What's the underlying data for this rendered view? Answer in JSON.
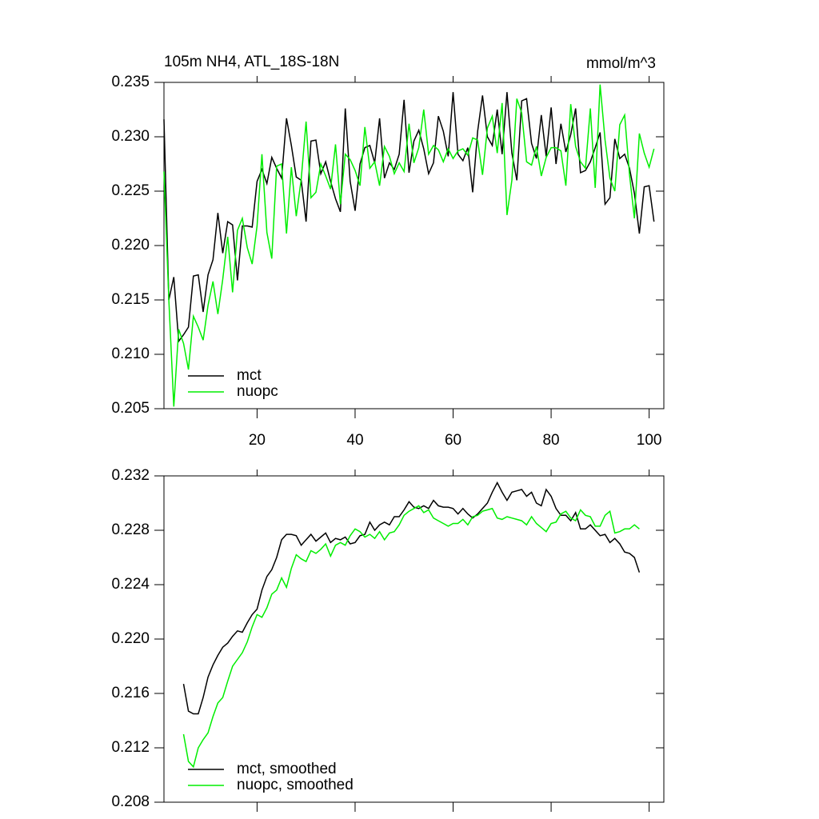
{
  "chart_data": [
    {
      "type": "line",
      "title": "105m NH4, ATL_18S-18N",
      "units": "mmol/m^3",
      "x": [
        1,
        2,
        3,
        4,
        5,
        6,
        7,
        8,
        9,
        10,
        11,
        12,
        13,
        14,
        15,
        16,
        17,
        18,
        19,
        20,
        21,
        22,
        23,
        24,
        25,
        26,
        27,
        28,
        29,
        30,
        31,
        32,
        33,
        34,
        35,
        36,
        37,
        38,
        39,
        40,
        41,
        42,
        43,
        44,
        45,
        46,
        47,
        48,
        49,
        50,
        51,
        52,
        53,
        54,
        55,
        56,
        57,
        58,
        59,
        60,
        61,
        62,
        63,
        64,
        65,
        66,
        67,
        68,
        69,
        70,
        71,
        72,
        73,
        74,
        75,
        76,
        77,
        78,
        79,
        80,
        81,
        82,
        83,
        84,
        85,
        86,
        87,
        88,
        89,
        90,
        91,
        92,
        93,
        94,
        95,
        96,
        97,
        98,
        99,
        100,
        101
      ],
      "series": [
        {
          "name": "mct",
          "color": "#000000",
          "values": [
            0.2316,
            0.215,
            0.2171,
            0.2112,
            0.2118,
            0.2125,
            0.2172,
            0.2173,
            0.2139,
            0.2173,
            0.2187,
            0.223,
            0.2193,
            0.2222,
            0.2219,
            0.2168,
            0.2218,
            0.2218,
            0.2217,
            0.2259,
            0.227,
            0.2257,
            0.2281,
            0.2271,
            0.2262,
            0.2317,
            0.2292,
            0.2263,
            0.226,
            0.2222,
            0.2296,
            0.2297,
            0.2266,
            0.2277,
            0.2259,
            0.2243,
            0.2231,
            0.2326,
            0.2259,
            0.2232,
            0.2275,
            0.229,
            0.2292,
            0.2276,
            0.2317,
            0.2262,
            0.2276,
            0.227,
            0.2284,
            0.2334,
            0.2267,
            0.2296,
            0.2306,
            0.2289,
            0.2266,
            0.2276,
            0.2319,
            0.2305,
            0.2282,
            0.2341,
            0.2284,
            0.2278,
            0.229,
            0.2249,
            0.2305,
            0.2338,
            0.23,
            0.2292,
            0.2325,
            0.2284,
            0.2341,
            0.2285,
            0.226,
            0.2333,
            0.2335,
            0.2294,
            0.228,
            0.232,
            0.2282,
            0.2327,
            0.2275,
            0.2312,
            0.2286,
            0.2302,
            0.2326,
            0.2267,
            0.2269,
            0.2277,
            0.229,
            0.2304,
            0.2238,
            0.2244,
            0.2298,
            0.228,
            0.2284,
            0.2271,
            0.2248,
            0.2211,
            0.2254,
            0.2255,
            0.2222
          ]
        },
        {
          "name": "nuopc",
          "color": "#00ee00",
          "values": [
            0.2268,
            0.215,
            0.2052,
            0.2123,
            0.211,
            0.2086,
            0.2135,
            0.2125,
            0.2113,
            0.2145,
            0.2167,
            0.2137,
            0.2169,
            0.2208,
            0.2157,
            0.2214,
            0.2225,
            0.2198,
            0.2183,
            0.2218,
            0.2284,
            0.2212,
            0.2188,
            0.2273,
            0.2275,
            0.2211,
            0.2272,
            0.2227,
            0.2261,
            0.2314,
            0.2244,
            0.2249,
            0.2275,
            0.2264,
            0.2252,
            0.2293,
            0.2238,
            0.2284,
            0.2279,
            0.2269,
            0.2255,
            0.2309,
            0.2271,
            0.2277,
            0.2255,
            0.2291,
            0.2282,
            0.2266,
            0.2276,
            0.2268,
            0.2312,
            0.2276,
            0.229,
            0.2325,
            0.2284,
            0.2292,
            0.2288,
            0.2277,
            0.2289,
            0.228,
            0.2287,
            0.2289,
            0.2283,
            0.2299,
            0.2297,
            0.2265,
            0.2308,
            0.2319,
            0.2285,
            0.2331,
            0.2228,
            0.226,
            0.2335,
            0.2322,
            0.2277,
            0.2274,
            0.2291,
            0.2264,
            0.2281,
            0.229,
            0.229,
            0.2287,
            0.2255,
            0.233,
            0.2291,
            0.2277,
            0.2271,
            0.2326,
            0.2253,
            0.2348,
            0.2297,
            0.2262,
            0.225,
            0.2311,
            0.232,
            0.2265,
            0.2225,
            0.2303,
            0.2285,
            0.2272,
            0.2289
          ]
        }
      ],
      "xlim": [
        1,
        103
      ],
      "xticks": [
        20,
        40,
        60,
        80,
        100
      ],
      "xtick_labels": true,
      "ylim": [
        0.205,
        0.235
      ],
      "yticks": [
        0.205,
        {
          "value": 0.21,
          "label": "0.210"
        },
        0.215,
        {
          "value": 0.22,
          "label": "0.220"
        },
        0.225,
        {
          "value": 0.23,
          "label": "0.230"
        },
        0.235
      ]
    },
    {
      "type": "line",
      "x": [
        5,
        6,
        7,
        8,
        9,
        10,
        11,
        12,
        13,
        14,
        15,
        16,
        17,
        18,
        19,
        20,
        21,
        22,
        23,
        24,
        25,
        26,
        27,
        28,
        29,
        30,
        31,
        32,
        33,
        34,
        35,
        36,
        37,
        38,
        39,
        40,
        41,
        42,
        43,
        44,
        45,
        46,
        47,
        48,
        49,
        50,
        51,
        52,
        53,
        54,
        55,
        56,
        57,
        58,
        59,
        60,
        61,
        62,
        63,
        64,
        65,
        66,
        67,
        68,
        69,
        70,
        71,
        72,
        73,
        74,
        75,
        76,
        77,
        78,
        79,
        80,
        81,
        82,
        83,
        84,
        85,
        86,
        87,
        88,
        89,
        90,
        91,
        92,
        93,
        94,
        95,
        96,
        97,
        98
      ],
      "series": [
        {
          "name": "mct, smoothed",
          "color": "#000000",
          "values": [
            0.2167,
            0.2147,
            0.2145,
            0.2145,
            0.2157,
            0.2172,
            0.2181,
            0.2188,
            0.2194,
            0.2197,
            0.2202,
            0.2206,
            0.2205,
            0.2212,
            0.2218,
            0.2222,
            0.2236,
            0.2246,
            0.2251,
            0.226,
            0.2273,
            0.2277,
            0.2277,
            0.2276,
            0.2269,
            0.2273,
            0.2277,
            0.2272,
            0.2275,
            0.2278,
            0.2271,
            0.2274,
            0.2273,
            0.2275,
            0.227,
            0.2271,
            0.2276,
            0.2277,
            0.2286,
            0.228,
            0.2284,
            0.2286,
            0.2284,
            0.229,
            0.229,
            0.2295,
            0.2301,
            0.2297,
            0.2296,
            0.2298,
            0.2296,
            0.2302,
            0.2298,
            0.2297,
            0.2297,
            0.2296,
            0.2292,
            0.2296,
            0.2292,
            0.2289,
            0.2292,
            0.2296,
            0.23,
            0.2308,
            0.2315,
            0.2308,
            0.2302,
            0.2308,
            0.2309,
            0.231,
            0.2305,
            0.2308,
            0.23,
            0.2298,
            0.231,
            0.2305,
            0.2296,
            0.2291,
            0.2291,
            0.2287,
            0.2293,
            0.2281,
            0.2281,
            0.2284,
            0.228,
            0.2276,
            0.2277,
            0.2271,
            0.2274,
            0.227,
            0.2264,
            0.2263,
            0.226,
            0.2249
          ]
        },
        {
          "name": "nuopc, smoothed",
          "color": "#00ee00",
          "values": [
            0.213,
            0.211,
            0.2106,
            0.212,
            0.2126,
            0.2131,
            0.2143,
            0.2153,
            0.2157,
            0.2169,
            0.218,
            0.2185,
            0.219,
            0.2198,
            0.2209,
            0.2218,
            0.2216,
            0.2223,
            0.2233,
            0.2236,
            0.2245,
            0.2238,
            0.2252,
            0.2262,
            0.2259,
            0.2257,
            0.2265,
            0.2263,
            0.2266,
            0.227,
            0.2261,
            0.2269,
            0.2271,
            0.2269,
            0.2276,
            0.2281,
            0.2279,
            0.2275,
            0.2277,
            0.2274,
            0.2279,
            0.2273,
            0.2278,
            0.2279,
            0.2284,
            0.2291,
            0.2294,
            0.2296,
            0.2298,
            0.2293,
            0.2295,
            0.2289,
            0.2287,
            0.2285,
            0.2283,
            0.2285,
            0.2285,
            0.2288,
            0.2284,
            0.229,
            0.2291,
            0.2294,
            0.2295,
            0.2296,
            0.2289,
            0.2288,
            0.229,
            0.2289,
            0.2288,
            0.2287,
            0.2284,
            0.229,
            0.2285,
            0.2282,
            0.2279,
            0.2285,
            0.2286,
            0.2292,
            0.2294,
            0.2289,
            0.2287,
            0.2295,
            0.2291,
            0.229,
            0.2283,
            0.2283,
            0.2291,
            0.2294,
            0.2278,
            0.2279,
            0.2281,
            0.2281,
            0.2284,
            0.2281
          ]
        }
      ],
      "xlim": [
        1,
        103
      ],
      "xticks": [
        20,
        40,
        60,
        80,
        100
      ],
      "xtick_labels": false,
      "ylim": [
        0.208,
        0.232
      ],
      "yticks": [
        0.208,
        0.212,
        0.216,
        {
          "value": 0.22,
          "label": "0.220"
        },
        0.224,
        0.228,
        0.232
      ]
    }
  ]
}
